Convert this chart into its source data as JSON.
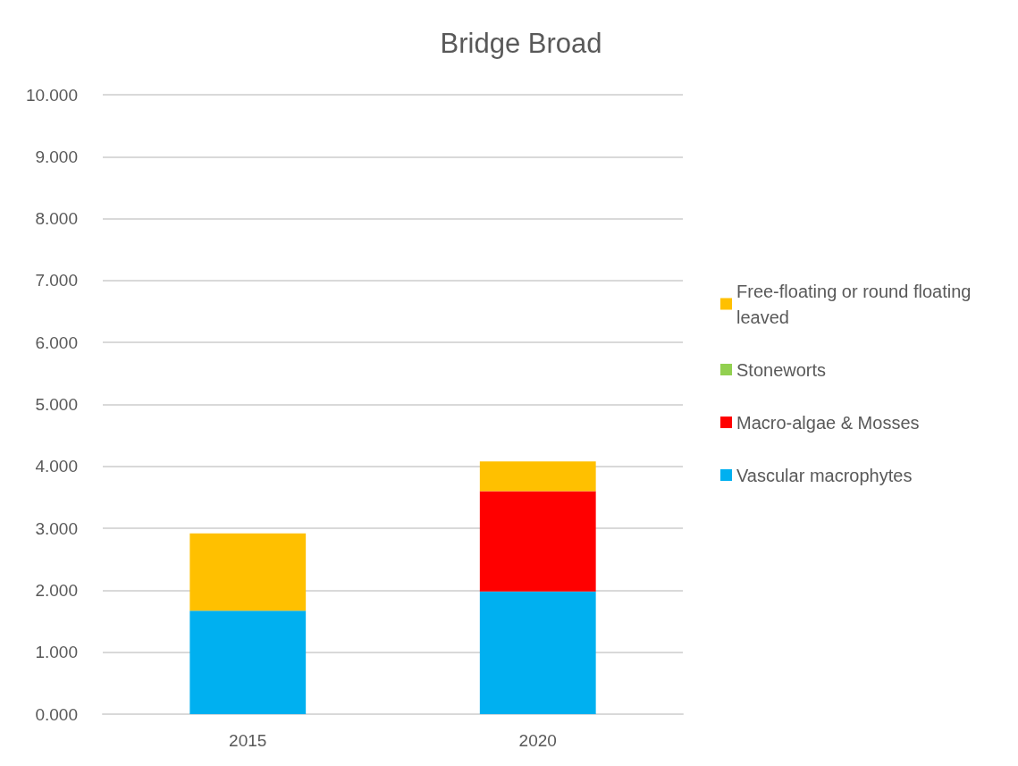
{
  "chart_data": {
    "type": "bar",
    "title": "Bridge Broad",
    "categories": [
      "2015",
      "2020"
    ],
    "stacked": true,
    "series": [
      {
        "name": "Vascular macrophytes",
        "color": "#00b0f0",
        "values": [
          1.67,
          1.98
        ]
      },
      {
        "name": "Macro-algae & Mosses",
        "color": "#ff0000",
        "values": [
          0,
          1.62
        ]
      },
      {
        "name": "Stoneworts",
        "color": "#92d050",
        "values": [
          0,
          0
        ]
      },
      {
        "name": "Free-floating or round floating leaved",
        "color": "#ffc000",
        "values": [
          1.25,
          0.48
        ]
      }
    ],
    "ylim": [
      0,
      10
    ],
    "yticks": [
      {
        "value": 0,
        "label": "0.000"
      },
      {
        "value": 1,
        "label": "1.000"
      },
      {
        "value": 2,
        "label": "2.000"
      },
      {
        "value": 3,
        "label": "3.000"
      },
      {
        "value": 4,
        "label": "4.000"
      },
      {
        "value": 5,
        "label": "5.000"
      },
      {
        "value": 6,
        "label": "6.000"
      },
      {
        "value": 7,
        "label": "7.000"
      },
      {
        "value": 8,
        "label": "8.000"
      },
      {
        "value": 9,
        "label": "9.000"
      },
      {
        "value": 10,
        "label": "10.000"
      }
    ],
    "grid": "y",
    "legend": "right"
  }
}
